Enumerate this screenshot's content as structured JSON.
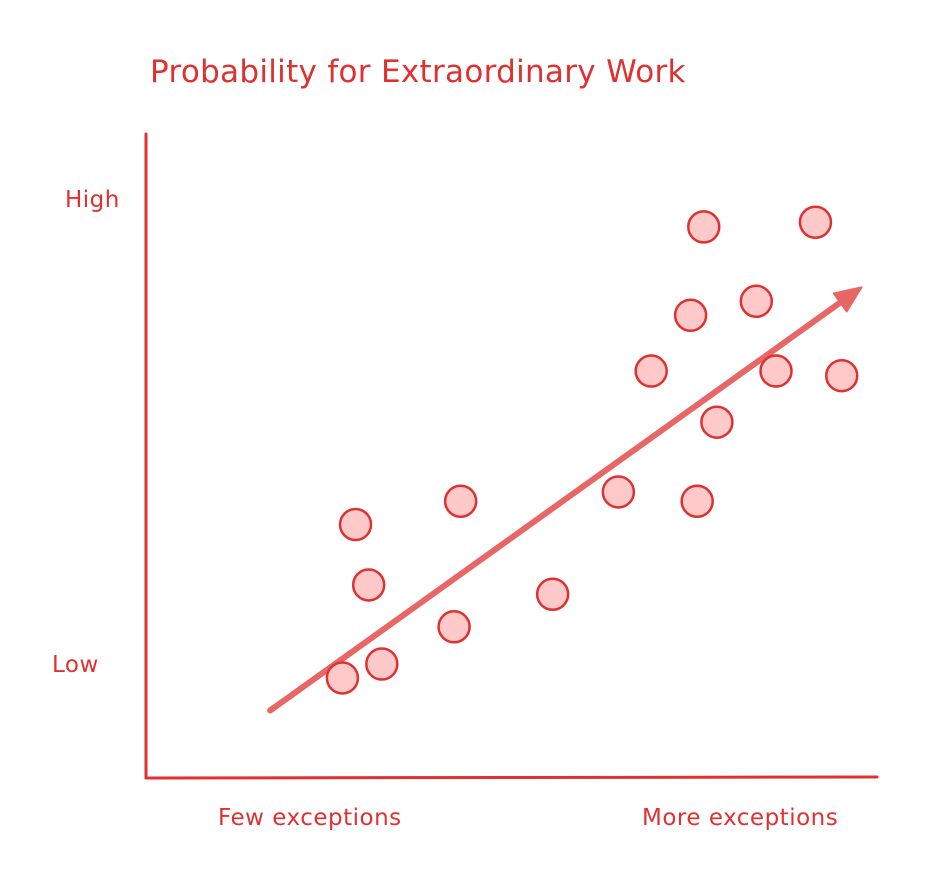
{
  "colors": {
    "ink": "#e03131",
    "point_fill": "#ffc9c9",
    "point_stroke": "#e03131",
    "trend": "#e86666"
  },
  "chart_data": {
    "type": "scatter",
    "title": "Probability for Extraordinary Work",
    "xlabel": "",
    "ylabel": "",
    "x_tick_labels": [
      "Few exceptions",
      "More exceptions"
    ],
    "y_tick_labels": [
      "Low",
      "High"
    ],
    "xlim": [
      0,
      100
    ],
    "ylim": [
      0,
      100
    ],
    "grid": false,
    "series": [
      {
        "points": [
          {
            "x": 20,
            "y": -3
          },
          {
            "x": 26,
            "y": 0
          },
          {
            "x": 37,
            "y": 8
          },
          {
            "x": 24,
            "y": 17
          },
          {
            "x": 22,
            "y": 30
          },
          {
            "x": 38,
            "y": 35
          },
          {
            "x": 52,
            "y": 15
          },
          {
            "x": 62,
            "y": 37
          },
          {
            "x": 74,
            "y": 35
          },
          {
            "x": 77,
            "y": 52
          },
          {
            "x": 67,
            "y": 63
          },
          {
            "x": 73,
            "y": 75
          },
          {
            "x": 83,
            "y": 78
          },
          {
            "x": 86,
            "y": 63
          },
          {
            "x": 75,
            "y": 94
          },
          {
            "x": 92,
            "y": 95
          },
          {
            "x": 96,
            "y": 62
          }
        ]
      }
    ],
    "trend": {
      "from": {
        "x": 9,
        "y": -10
      },
      "to": {
        "x": 99,
        "y": 81
      }
    }
  }
}
